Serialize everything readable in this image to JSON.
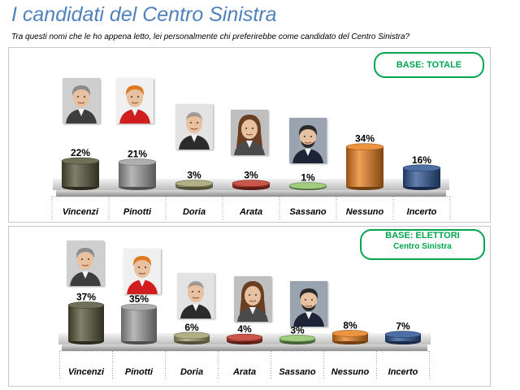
{
  "header": {
    "title": "I candidati del Centro Sinistra",
    "question": "Tra questi nomi che le ho appena letto, lei personalmente chi preferirebbe come candidato del Centro Sinistra?"
  },
  "colors": {
    "title": "#4f81bd",
    "badge": "#00a64f",
    "candidates": [
      "#57563a",
      "#a0a0a0",
      "#a3a170",
      "#c0392b",
      "#8fc36a",
      "#e8801f",
      "#2e5694"
    ]
  },
  "chart_data": [
    {
      "type": "bar",
      "badge": "BASE: TOTALE",
      "badge_sub": "",
      "categories": [
        "Vincenzi",
        "Pinotti",
        "Doria",
        "Arata",
        "Sassano",
        "Nessuno",
        "Incerto"
      ],
      "values": [
        22,
        21,
        3,
        3,
        1,
        34,
        16
      ],
      "value_labels": [
        "22%",
        "21%",
        "3%",
        "3%",
        "1%",
        "34%",
        "16%"
      ]
    },
    {
      "type": "bar",
      "badge": "BASE: ELETTORI",
      "badge_sub": "Centro Sinistra",
      "categories": [
        "Vincenzi",
        "Pinotti",
        "Doria",
        "Arata",
        "Sassano",
        "Nessuno",
        "Incerto"
      ],
      "values": [
        37,
        35,
        6,
        4,
        3,
        8,
        7
      ],
      "value_labels": [
        "37%",
        "35%",
        "6%",
        "4%",
        "3%",
        "8%",
        "7%"
      ]
    }
  ],
  "photos": [
    {
      "name": "Vincenzi",
      "icon": "portrait-woman-grey-hair"
    },
    {
      "name": "Pinotti",
      "icon": "portrait-woman-red-jacket"
    },
    {
      "name": "Doria",
      "icon": "portrait-man-bald"
    },
    {
      "name": "Arata",
      "icon": "portrait-woman-brown-hair"
    },
    {
      "name": "Sassano",
      "icon": "portrait-man-dark-suit"
    }
  ]
}
